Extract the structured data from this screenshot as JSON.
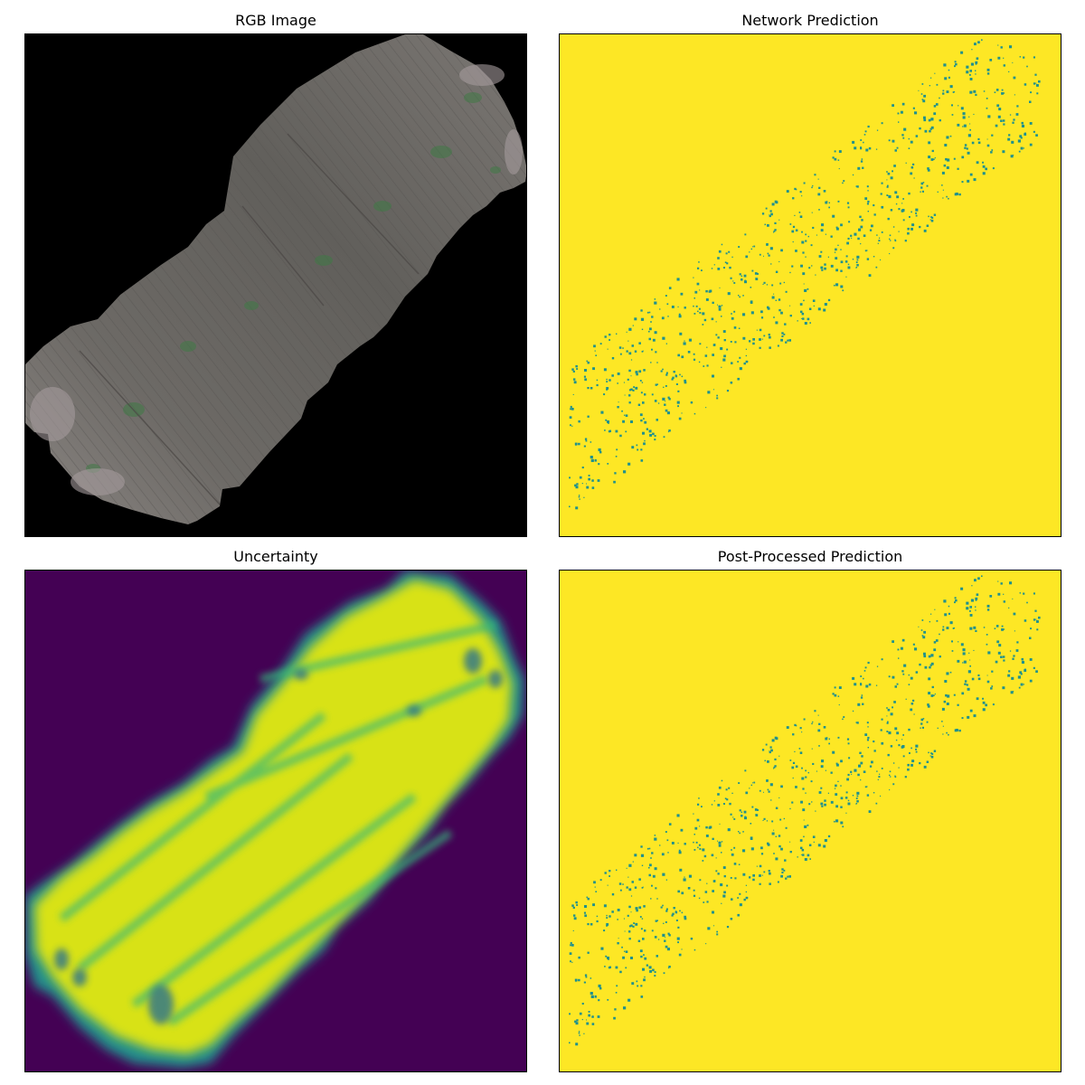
{
  "panels": {
    "rgb": {
      "title": "RGB Image"
    },
    "prediction": {
      "title": "Network Prediction"
    },
    "uncertainty": {
      "title": "Uncertainty"
    },
    "postprocessed": {
      "title": "Post-Processed Prediction"
    }
  },
  "colors": {
    "background_black": "#000000",
    "field_gray": "#6e6a66",
    "vegetation_green": "#3f7a45",
    "viridis_yellow": "#fde725",
    "viridis_teal": "#21918c",
    "viridis_green": "#35b779",
    "viridis_purple": "#440154",
    "uncertainty_high": "#d8e219"
  }
}
